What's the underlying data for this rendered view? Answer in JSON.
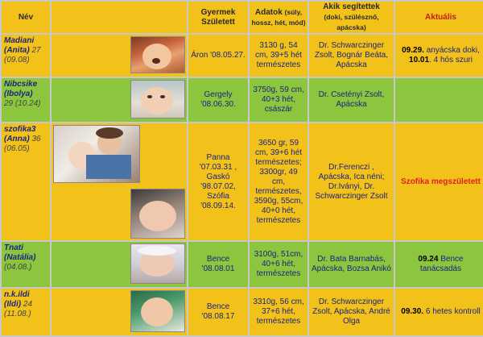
{
  "headers": {
    "nev": "Név",
    "gyermek_1": "Gyermek",
    "gyermek_2": "Született",
    "adatok": "Adatok",
    "adatok_small": "(súly, hossz, hét, mód)",
    "akik": "Akik segítettek",
    "akik_small": "(doki, szülésznő, apácska)",
    "aktualis": "Aktuális"
  },
  "rows": [
    {
      "nick": "Madiani",
      "real": "(Anita)",
      "age": "27",
      "date": "(09.08)",
      "gyermek": "Áron '08.05.27.",
      "adatok": "3130 g, 54 cm, 39+5 hét természetes",
      "akik": "Dr. Schwarczinger Zsolt, Bognár Beáta, Apácska",
      "akt_bold1": "09.29.",
      "akt_text1": " anyácska doki, ",
      "akt_bold2": "10.01",
      "akt_text2": ". 4 hós szuri"
    },
    {
      "nick": "Nibcsike",
      "real": "(Ibolya)",
      "age": "29 (10.24)",
      "gyermek": "Gergely '08.06.30.",
      "adatok": "3750g, 59 cm, 40+3 hét, császár",
      "akik": "Dr. Csetényi Zsolt, Apácska"
    },
    {
      "nick": "szofika3",
      "real": "(Anna)",
      "age": "36",
      "date": "(06.05)",
      "gyermek": "Panna '07.03.31 , Gaskó '98.07.02, Szófia '08.09.14.",
      "adatok": "3650 gr, 59 cm, 39+6 hét természetes; 3300gr, 49 cm, természetes, 3590g, 55cm, 40+0 hét, természetes",
      "akik": "Dr.Ferenczi , Apácska, Ica néni; Dr.Iványi, Dr. Schwarczinger Zsolt",
      "akt_red": "Szofika megszületett"
    },
    {
      "nick": "Tnati",
      "real": "(Natália)",
      "age": "(04.08.)",
      "gyermek": "Bence '08.08.01",
      "adatok": "3100g, 51cm, 40+6 hét, természetes",
      "akik": "Dr. Bata Barnabás, Apácska, Bozsa Anikó",
      "akt_bold1": "09.24",
      "akt_text1": " Bence tanácsadás"
    },
    {
      "nick": "n.k.ildi",
      "real": "(Ildi)",
      "age": "24",
      "date": "(11.08.)",
      "gyermek": "Bence '08.08.17",
      "adatok": "3310g, 56 cm, 37+6 hét, természetes",
      "akik": "Dr. Schwarczinger Zsolt, Apácska, André Olga",
      "akt_bold1": "09.30.",
      "akt_text1": " 6 hetes kontroll"
    }
  ],
  "colors": {
    "orange": "#f2c21a",
    "green": "#8cc63f",
    "text_blue": "#1a237e",
    "accent_red": "#e02020"
  },
  "icons": [
    "baby-photo-icon"
  ]
}
